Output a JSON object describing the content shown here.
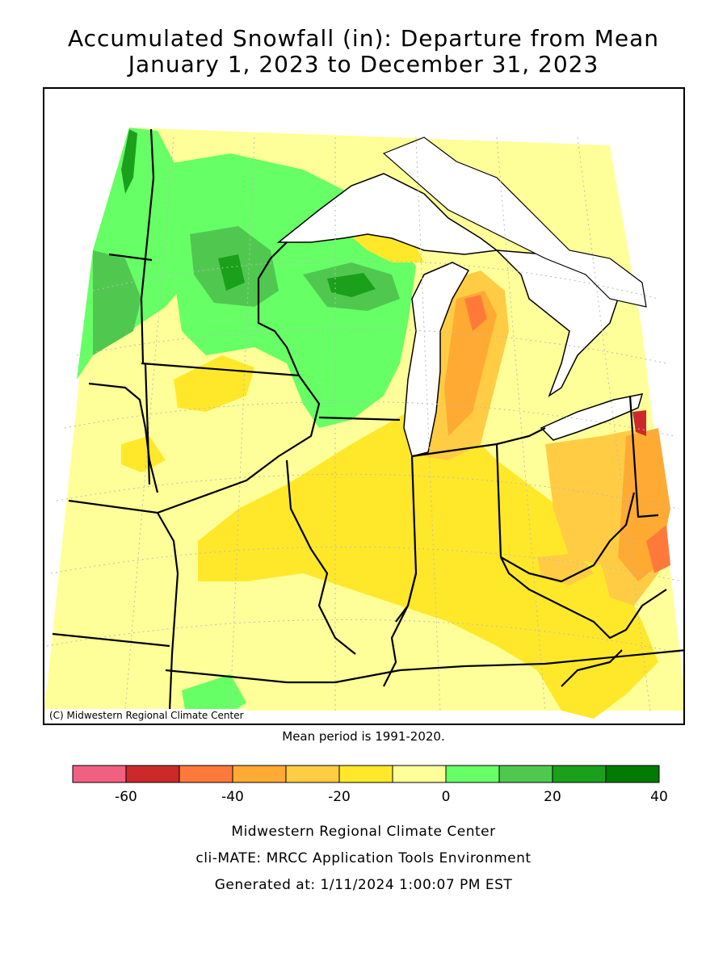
{
  "title": {
    "line1": "Accumulated Snowfall (in): Departure from Mean",
    "line2": "January 1, 2023 to December 31, 2023"
  },
  "map": {
    "credit": "(C) Midwestern Regional Climate Center",
    "colors": {
      "land_default": "#ffff99",
      "water": "#ffffff",
      "state_line": "#000000",
      "graticule": "#bbbbbb"
    }
  },
  "mean_period": "Mean period is 1991-2020.",
  "legend": {
    "bins": [
      {
        "min": -70,
        "max": -60,
        "color": "#f06080"
      },
      {
        "min": -60,
        "max": -50,
        "color": "#cc2a2a"
      },
      {
        "min": -50,
        "max": -40,
        "color": "#ff7a3a"
      },
      {
        "min": -40,
        "max": -30,
        "color": "#ffaa33"
      },
      {
        "min": -30,
        "max": -20,
        "color": "#ffcc44"
      },
      {
        "min": -20,
        "max": -10,
        "color": "#ffe82a"
      },
      {
        "min": -10,
        "max": 0,
        "color": "#ffff99"
      },
      {
        "min": 0,
        "max": 10,
        "color": "#66ff66"
      },
      {
        "min": 10,
        "max": 20,
        "color": "#50c850"
      },
      {
        "min": 20,
        "max": 30,
        "color": "#1aa01a"
      },
      {
        "min": 30,
        "max": 40,
        "color": "#007a00"
      }
    ],
    "tick_labels": [
      "-60",
      "-40",
      "-20",
      "0",
      "20",
      "40"
    ],
    "tick_values": [
      -60,
      -40,
      -20,
      0,
      20,
      40
    ]
  },
  "footer": {
    "org": "Midwestern Regional Climate Center",
    "tool": "cli-MATE: MRCC Application Tools Environment",
    "generated": "Generated at: 1/11/2024 1:00:07 PM EST"
  }
}
